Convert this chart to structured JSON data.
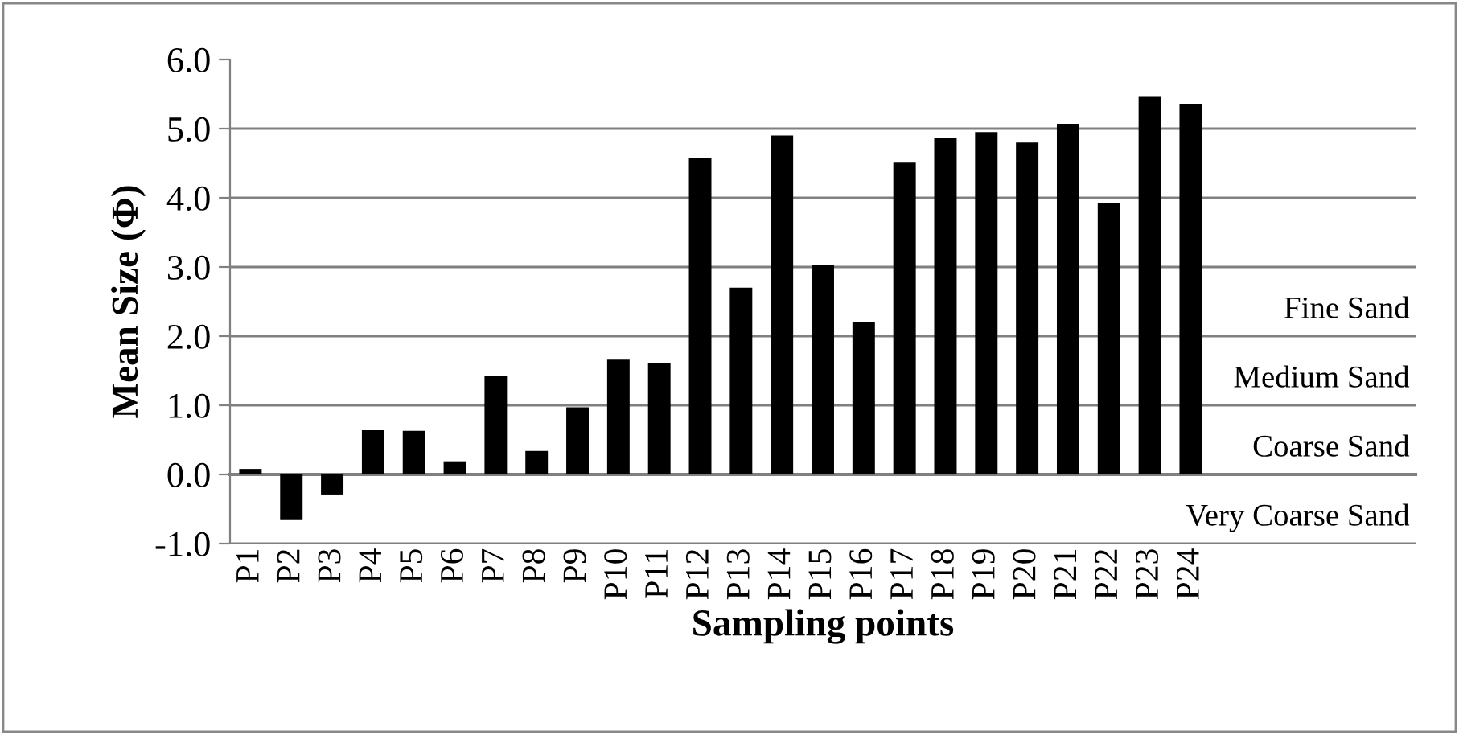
{
  "chart_data": {
    "type": "bar",
    "xlabel": "Sampling points",
    "ylabel": "Mean Size (Φ)",
    "categories": [
      "P1",
      "P2",
      "P3",
      "P4",
      "P5",
      "P6",
      "P7",
      "P8",
      "P9",
      "P10",
      "P11",
      "P12",
      "P13",
      "P14",
      "P15",
      "P16",
      "P17",
      "P18",
      "P19",
      "P20",
      "P21",
      "P22",
      "P23",
      "P24"
    ],
    "values": [
      0.08,
      -0.66,
      -0.29,
      0.64,
      0.63,
      0.19,
      1.43,
      0.34,
      0.97,
      1.66,
      1.61,
      4.58,
      2.7,
      4.9,
      3.03,
      2.21,
      4.51,
      4.87,
      4.95,
      4.8,
      5.07,
      3.92,
      5.46,
      5.36
    ],
    "color": "#000000",
    "ylim": [
      -1,
      6
    ],
    "yticks": [
      {
        "value": -1,
        "label": "-1.0"
      },
      {
        "value": 0,
        "label": "0.0"
      },
      {
        "value": 1,
        "label": "1.0"
      },
      {
        "value": 2,
        "label": "2.0"
      },
      {
        "value": 3,
        "label": "3.0"
      },
      {
        "value": 4,
        "label": "4.0"
      },
      {
        "value": 5,
        "label": "5.0"
      },
      {
        "value": 6,
        "label": "6.0"
      }
    ],
    "grid": "y",
    "annotations": [
      "Fine Sand",
      "Medium Sand",
      "Coarse Sand",
      "Very Coarse Sand"
    ]
  }
}
